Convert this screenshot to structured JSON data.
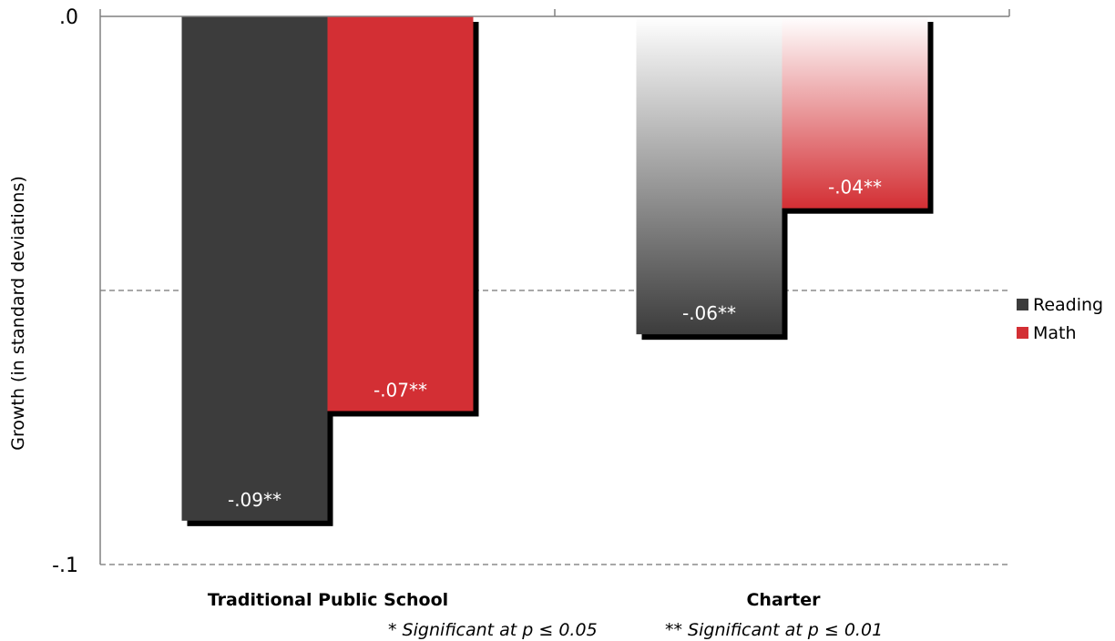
{
  "chart_data": {
    "type": "bar",
    "categories": [
      "Traditional Public School",
      "Charter"
    ],
    "series": [
      {
        "name": "Reading",
        "values": [
          -0.092,
          -0.058
        ],
        "labels": [
          "-.09**",
          "-.06**"
        ],
        "color": "#3c3c3c"
      },
      {
        "name": "Math",
        "values": [
          -0.072,
          -0.035
        ],
        "labels": [
          "-.07**",
          "-.04**"
        ],
        "color": "#d32f34"
      }
    ],
    "ylabel": "Growth (in standard deviations)",
    "ylim": [
      -0.1,
      0.0
    ],
    "yticks": [
      ".0",
      "-.1"
    ],
    "gridlines": [
      -0.05,
      -0.1
    ],
    "legend": {
      "position": "right",
      "entries": [
        "Reading",
        "Math"
      ]
    },
    "notes": [
      "* Significant at p ≤ 0.05",
      "** Significant at p ≤ 0.01"
    ]
  }
}
